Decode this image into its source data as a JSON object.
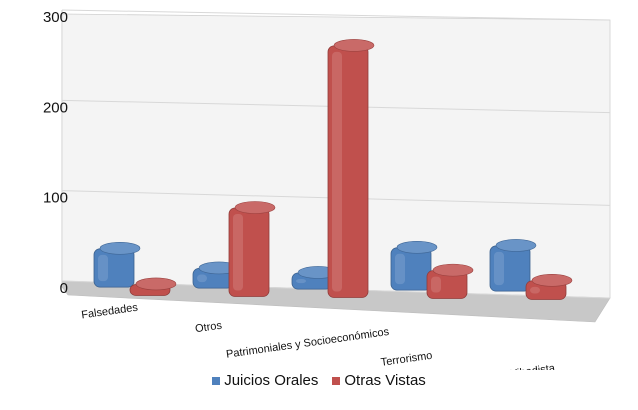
{
  "chart_data": {
    "type": "bar",
    "style": "3d-clustered-column",
    "categories": [
      "Falsedades",
      "Otros",
      "Patrimoniales y Socioeconómicos",
      "Terrorismo",
      "Terrorismo Yihadista"
    ],
    "series": [
      {
        "name": "Juicios Orales",
        "color": "#4f81bd",
        "values": [
          43,
          22,
          18,
          47,
          50
        ]
      },
      {
        "name": "Otras Vistas",
        "color": "#c0504d",
        "values": [
          12,
          96,
          272,
          30,
          20
        ]
      }
    ],
    "ylim": [
      0,
      300
    ],
    "yticks": [
      0,
      100,
      200,
      300
    ],
    "grid": true,
    "legend": "bottom",
    "title": "",
    "xlabel": "",
    "ylabel": ""
  }
}
